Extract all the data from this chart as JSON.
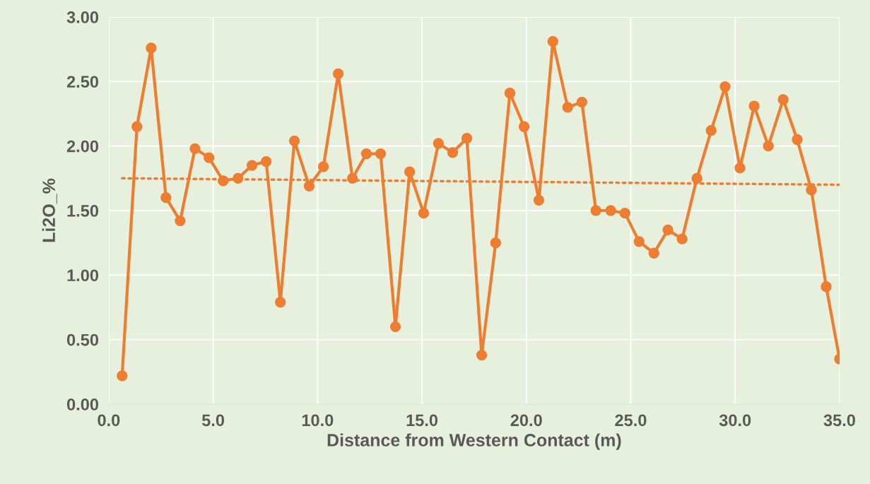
{
  "chart_data": {
    "type": "line",
    "xlabel": "Distance from Western Contact (m)",
    "ylabel": "Li2O_%",
    "xlim": [
      0,
      35
    ],
    "ylim": [
      0,
      3
    ],
    "xticks": [
      {
        "value": 0,
        "label": "0.0"
      },
      {
        "value": 5,
        "label": "5.0"
      },
      {
        "value": 10,
        "label": "10.0"
      },
      {
        "value": 15,
        "label": "15.0"
      },
      {
        "value": 20,
        "label": "20.0"
      },
      {
        "value": 25,
        "label": "25.0"
      },
      {
        "value": 30,
        "label": "30.0"
      },
      {
        "value": 35,
        "label": "35.0"
      }
    ],
    "yticks": [
      {
        "value": 0,
        "label": "0.00"
      },
      {
        "value": 0.5,
        "label": "0.50"
      },
      {
        "value": 1,
        "label": "1.00"
      },
      {
        "value": 1.5,
        "label": "1.50"
      },
      {
        "value": 2,
        "label": "2.00"
      },
      {
        "value": 2.5,
        "label": "2.50"
      },
      {
        "value": 3,
        "label": "3.00"
      }
    ],
    "grid": true,
    "series": [
      {
        "color": "#ed7d31",
        "marker": "circle",
        "line_style": "solid",
        "x": [
          0.64,
          1.35,
          2.03,
          2.74,
          3.42,
          4.13,
          4.8,
          5.48,
          6.19,
          6.86,
          7.54,
          8.22,
          8.89,
          9.6,
          10.28,
          10.99,
          11.67,
          12.34,
          13.02,
          13.73,
          14.41,
          15.08,
          15.79,
          16.47,
          17.15,
          17.86,
          18.53,
          19.21,
          19.89,
          20.6,
          21.27,
          21.98,
          22.66,
          23.33,
          24.04,
          24.72,
          25.4,
          26.11,
          26.78,
          27.46,
          28.17,
          28.85,
          29.52,
          30.23,
          30.91,
          31.59,
          32.3,
          32.97,
          33.65,
          34.36,
          35.0
        ],
        "values": [
          0.22,
          2.15,
          2.76,
          1.6,
          1.42,
          1.98,
          1.91,
          1.73,
          1.75,
          1.85,
          1.88,
          0.79,
          2.04,
          1.69,
          1.84,
          2.56,
          1.75,
          1.94,
          1.94,
          0.6,
          1.8,
          1.48,
          2.02,
          1.95,
          2.06,
          0.38,
          1.25,
          2.41,
          2.15,
          1.58,
          2.81,
          2.3,
          2.34,
          1.5,
          1.5,
          1.48,
          1.26,
          1.17,
          1.35,
          1.28,
          1.75,
          2.12,
          2.46,
          1.83,
          2.31,
          2.0,
          2.36,
          2.05,
          1.66,
          0.91,
          0.35
        ]
      },
      {
        "color": "#ed7d31",
        "marker": "none",
        "line_style": "dotted",
        "x": [
          0.64,
          35.0
        ],
        "values": [
          1.75,
          1.7
        ]
      }
    ]
  }
}
